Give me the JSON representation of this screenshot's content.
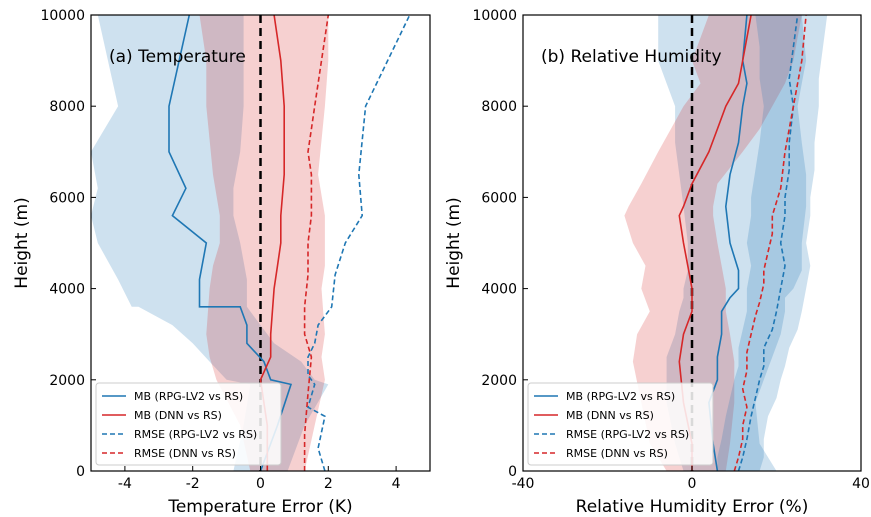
{
  "chart_data": [
    {
      "type": "line",
      "panel_label": "(a) Temperature",
      "xlabel": "Temperature Error (K)",
      "ylabel": "Height (m)",
      "xlim": [
        -5,
        5
      ],
      "ylim": [
        0,
        10000
      ],
      "xticks": [
        -4,
        -2,
        0,
        2,
        4
      ],
      "xtick_labels": [
        "-4",
        "-2",
        "0",
        "2",
        "4"
      ],
      "yticks": [
        0,
        2000,
        4000,
        6000,
        8000,
        10000
      ],
      "ytick_labels": [
        "0",
        "2000",
        "4000",
        "6000",
        "8000",
        "10000"
      ],
      "zero_line": 0,
      "legend_position": "lower-left",
      "series": [
        {
          "name": "MB (RPG-LV2 vs RS)",
          "color": "#1f77b4",
          "style": "solid",
          "x": [
            0,
            0.5,
            0.9,
            0.3,
            0.1,
            -0.4,
            -0.4,
            -0.6,
            -1.8,
            -1.8,
            -1.6,
            -2.6,
            -2.2,
            -2.7,
            -2.7,
            -2.1
          ],
          "y": [
            0,
            1000,
            1900,
            2000,
            2400,
            2800,
            3200,
            3600,
            3600,
            4200,
            5000,
            5600,
            6200,
            7000,
            8000,
            10000
          ],
          "band_lower": [
            -0.8,
            -0.5,
            -0.3,
            -1.0,
            -1.5,
            -2.0,
            -2.6,
            -3.6,
            -3.8,
            -4.2,
            -4.8,
            -5.0,
            -4.8,
            -5.0,
            -4.2,
            -4.8
          ],
          "band_upper": [
            0.8,
            1.3,
            2.0,
            1.6,
            1.2,
            0.4,
            0.0,
            -0.4,
            -0.4,
            -0.4,
            -0.6,
            -0.8,
            -0.8,
            -0.6,
            -0.5,
            -0.5
          ]
        },
        {
          "name": "MB (DNN vs RS)",
          "color": "#d62728",
          "style": "solid",
          "x": [
            0.2,
            0.2,
            0,
            0.3,
            0.3,
            0.4,
            0.5,
            0.6,
            0.6,
            0.7,
            0.7,
            0.6,
            0.4
          ],
          "y": [
            0,
            1000,
            2000,
            2500,
            3000,
            4000,
            4500,
            5000,
            5600,
            6500,
            8000,
            9000,
            10000
          ],
          "band_lower": [
            -0.3,
            -0.6,
            -1.3,
            -1.5,
            -1.6,
            -1.5,
            -1.4,
            -1.2,
            -1.2,
            -1.4,
            -1.6,
            -1.6,
            -1.8
          ],
          "band_upper": [
            1.3,
            1.6,
            1.9,
            1.8,
            1.9,
            1.8,
            1.9,
            1.9,
            1.9,
            1.7,
            1.9,
            2.0,
            2.0
          ]
        },
        {
          "name": "RMSE (RPG-LV2 vs RS)",
          "color": "#1f77b4",
          "style": "dashed",
          "x": [
            1.9,
            1.7,
            1.9,
            1.4,
            1.6,
            1.4,
            1.4,
            1.6,
            1.7,
            2.1,
            2.2,
            2.5,
            3.0,
            2.9,
            3.1,
            4.4
          ],
          "y": [
            0,
            500,
            1200,
            1400,
            1900,
            2100,
            2500,
            2800,
            3200,
            3600,
            4300,
            5000,
            5600,
            6500,
            8000,
            10000
          ]
        },
        {
          "name": "RMSE (DNN vs RS)",
          "color": "#d62728",
          "style": "dashed",
          "x": [
            1.3,
            1.3,
            1.4,
            1.5,
            1.3,
            1.3,
            1.4,
            1.4,
            1.5,
            1.5,
            1.4,
            1.5,
            1.6,
            1.8,
            2.0
          ],
          "y": [
            0,
            800,
            1700,
            2500,
            3000,
            3600,
            4300,
            5000,
            5600,
            6500,
            7000,
            7500,
            8000,
            9000,
            10000
          ]
        }
      ]
    },
    {
      "type": "line",
      "panel_label": "(b) Relative Humidity",
      "xlabel": "Relative Humidity Error (%)",
      "ylabel": "Height (m)",
      "xlim": [
        -40,
        40
      ],
      "ylim": [
        0,
        10000
      ],
      "xticks": [
        -40,
        0,
        40
      ],
      "xtick_labels": [
        "-40",
        "0",
        "40"
      ],
      "yticks": [
        0,
        2000,
        4000,
        6000,
        8000,
        10000
      ],
      "ytick_labels": [
        "0",
        "2000",
        "4000",
        "6000",
        "8000",
        "10000"
      ],
      "zero_line": 0,
      "legend_position": "lower-left",
      "series": [
        {
          "name": "MB (RPG-LV2 vs RS)",
          "color": "#1f77b4",
          "style": "solid",
          "x": [
            6,
            5,
            4,
            6,
            6,
            7,
            7,
            9,
            11,
            11,
            9,
            8,
            9,
            11,
            12,
            13,
            12,
            13
          ],
          "y": [
            0,
            600,
            1500,
            2000,
            2500,
            3000,
            3500,
            3800,
            4000,
            4400,
            5000,
            5800,
            6500,
            7200,
            8000,
            8500,
            9000,
            10000
          ],
          "band_lower": [
            -2,
            -4,
            -6,
            -6,
            -6,
            -4,
            -3,
            -2,
            -2,
            -1,
            -1,
            -2,
            -3,
            -4,
            -4,
            -6,
            -8,
            -8
          ],
          "band_upper": [
            20,
            16,
            15,
            17,
            19,
            21,
            22,
            22,
            24,
            26,
            26,
            27,
            27,
            26,
            25,
            26,
            27,
            26
          ]
        },
        {
          "name": "MB (DNN vs RS)",
          "color": "#d62728",
          "style": "solid",
          "x": [
            0,
            0,
            -2,
            -3,
            -2,
            0,
            0,
            -1,
            -2,
            -3,
            -2,
            0,
            4,
            6,
            8,
            11,
            12,
            14
          ],
          "y": [
            0,
            600,
            1500,
            2400,
            3000,
            3500,
            4000,
            4500,
            5000,
            5600,
            5800,
            6300,
            7000,
            7500,
            8000,
            8500,
            9000,
            10000
          ],
          "band_lower": [
            -6,
            -10,
            -12,
            -14,
            -13,
            -10,
            -12,
            -11,
            -14,
            -16,
            -15,
            -12,
            -8,
            -5,
            -2,
            2,
            0,
            4
          ],
          "band_upper": [
            8,
            9,
            10,
            10,
            9,
            8,
            8,
            7,
            6,
            5,
            5,
            6,
            12,
            16,
            19,
            22,
            24,
            26
          ]
        },
        {
          "name": "RMSE (RPG-LV2 vs RS)",
          "color": "#1f77b4",
          "style": "dashed",
          "x": [
            11,
            12,
            13,
            14,
            15,
            16,
            17,
            17,
            19,
            20,
            21,
            22,
            21,
            22,
            22,
            23,
            23,
            24,
            23,
            24,
            25
          ],
          "y": [
            0,
            300,
            700,
            1200,
            1600,
            2000,
            2300,
            2700,
            3100,
            3500,
            4000,
            4500,
            5000,
            5600,
            6000,
            6600,
            7200,
            8000,
            8600,
            9300,
            10000
          ],
          "band_lower": [
            6,
            6,
            7,
            8,
            9,
            10,
            11,
            11,
            12,
            13,
            13,
            14,
            13,
            14,
            14,
            15,
            16,
            17,
            16,
            16,
            15
          ],
          "band_upper": [
            16,
            17,
            17,
            18,
            20,
            21,
            22,
            23,
            25,
            26,
            27,
            28,
            27,
            28,
            28,
            29,
            29,
            30,
            30,
            31,
            32
          ]
        },
        {
          "name": "RMSE (DNN vs RS)",
          "color": "#d62728",
          "style": "dashed",
          "x": [
            10,
            11,
            12,
            12,
            13,
            12,
            13,
            13,
            14,
            15,
            16,
            17,
            17,
            18,
            19,
            19,
            21,
            22,
            24,
            26,
            27
          ],
          "y": [
            0,
            300,
            700,
            1000,
            1400,
            1800,
            2200,
            2600,
            3000,
            3400,
            3700,
            4100,
            4400,
            4800,
            5200,
            5600,
            6200,
            7000,
            8000,
            9000,
            10000
          ]
        }
      ]
    }
  ]
}
